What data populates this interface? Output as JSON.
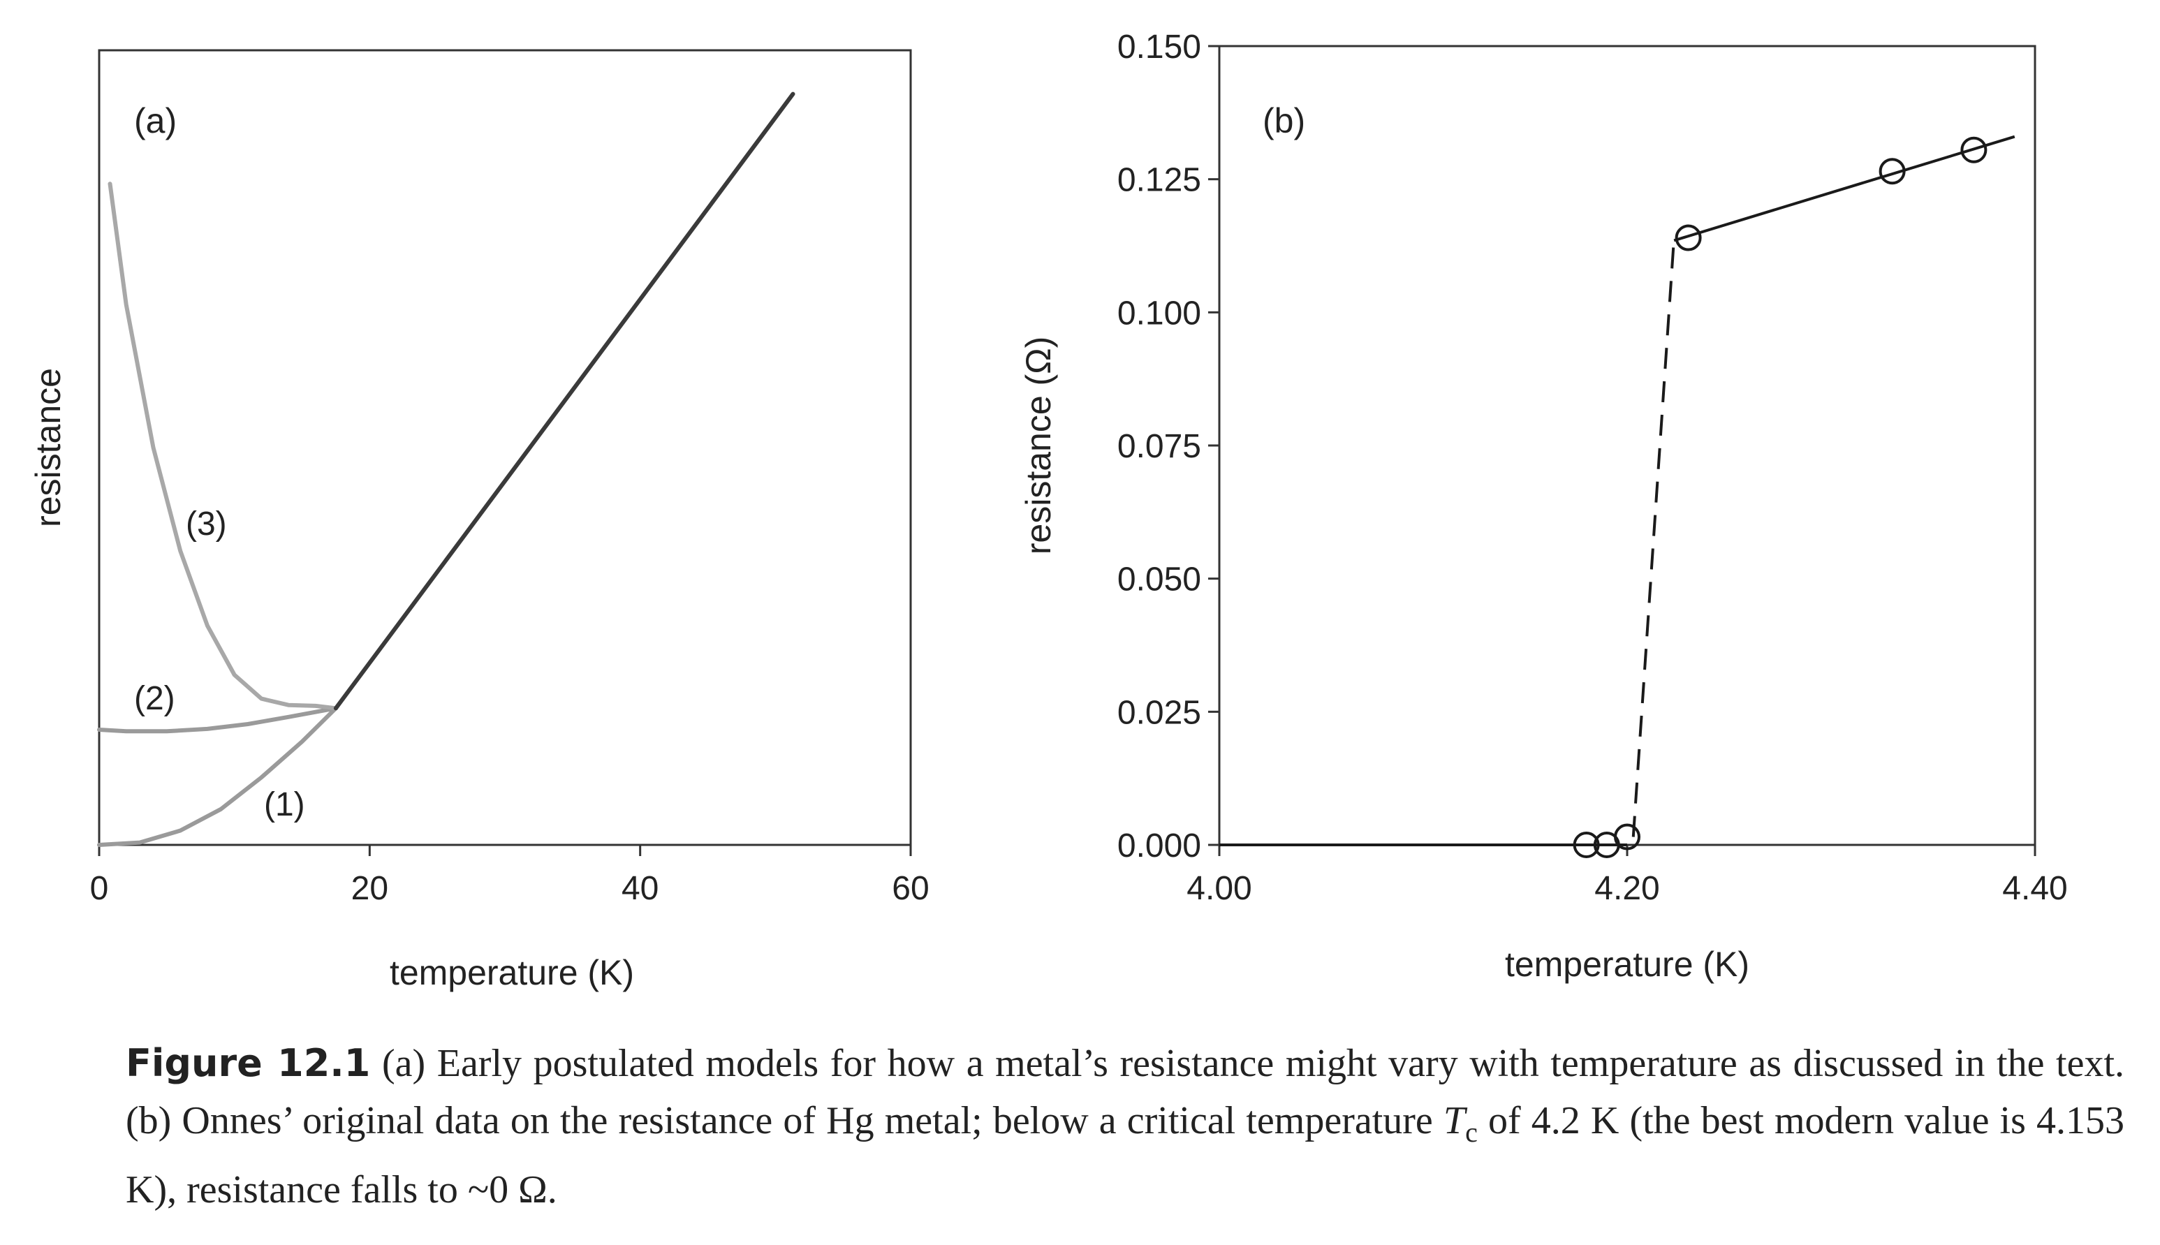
{
  "chart_data": [
    {
      "type": "line",
      "panel_label": "(a)",
      "xlabel": "temperature (K)",
      "ylabel": "resistance",
      "xlim": [
        0,
        60
      ],
      "ylim": [
        0,
        1
      ],
      "x_ticks": [
        "0",
        "20",
        "40",
        "60"
      ],
      "y_ticks": [],
      "grid": false,
      "series": [
        {
          "name": "(1)",
          "color": "#9a9a9a",
          "points": [
            [
              0,
              0.0
            ],
            [
              3,
              0.003
            ],
            [
              6,
              0.018
            ],
            [
              9,
              0.045
            ],
            [
              12,
              0.085
            ],
            [
              15,
              0.13
            ],
            [
              17.5,
              0.172
            ]
          ]
        },
        {
          "name": "(2)",
          "color": "#9a9a9a",
          "points": [
            [
              0,
              0.145
            ],
            [
              2,
              0.143
            ],
            [
              5,
              0.143
            ],
            [
              8,
              0.146
            ],
            [
              11,
              0.152
            ],
            [
              14,
              0.161
            ],
            [
              17.5,
              0.172
            ]
          ]
        },
        {
          "name": "(3)",
          "color": "#a8a8a8",
          "points": [
            [
              0.8,
              0.832
            ],
            [
              2,
              0.68
            ],
            [
              4,
              0.5
            ],
            [
              6,
              0.37
            ],
            [
              8,
              0.276
            ],
            [
              10,
              0.214
            ],
            [
              12,
              0.184
            ],
            [
              14,
              0.176
            ],
            [
              16,
              0.175
            ],
            [
              17.5,
              0.172
            ]
          ]
        },
        {
          "name": "",
          "color": "#3a3a3a",
          "points": [
            [
              17.5,
              0.172
            ],
            [
              51.3,
              0.945
            ]
          ]
        }
      ]
    },
    {
      "type": "line",
      "panel_label": "(b)",
      "xlabel": "temperature (K)",
      "ylabel": "resistance (Ω)",
      "xlim": [
        4.0,
        4.4
      ],
      "ylim": [
        0.0,
        0.15
      ],
      "x_ticks": [
        "4.00",
        "4.20",
        "4.40"
      ],
      "y_ticks": [
        "0.000",
        "0.025",
        "0.050",
        "0.075",
        "0.100",
        "0.125",
        "0.150"
      ],
      "grid": false,
      "points": [
        {
          "x": 4.18,
          "y": 0.0
        },
        {
          "x": 4.19,
          "y": 0.0
        },
        {
          "x": 4.2,
          "y": 0.0015
        },
        {
          "x": 4.23,
          "y": 0.114
        },
        {
          "x": 4.33,
          "y": 0.1265
        },
        {
          "x": 4.37,
          "y": 0.1305
        }
      ],
      "solid_line": [
        [
          4.0,
          0.0
        ],
        [
          4.2,
          0.0
        ]
      ],
      "dashed_line": [
        [
          4.203,
          0.0015
        ],
        [
          4.223,
          0.114
        ]
      ],
      "fit_line": [
        [
          4.223,
          0.1135
        ],
        [
          4.39,
          0.133
        ]
      ]
    }
  ],
  "caption": {
    "figure_number": "Figure 12.1",
    "text_1": "(a) Early postulated models for how a metal’s resistance might vary with temperature as discussed in the text. (b) Onnes’ original data on the resistance of Hg metal; below a critical temperature",
    "tc_symbol": "T",
    "tc_subscript": "c",
    "text_2": "of 4.2 K (the best modern value is 4.153 K), resistance falls to ~0 Ω."
  }
}
